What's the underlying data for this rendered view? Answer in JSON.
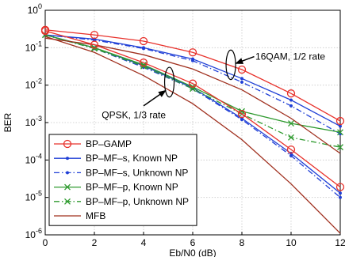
{
  "chart_data": {
    "type": "line",
    "xlabel": "Eb/N0 (dB)",
    "ylabel": "BER",
    "xlim": [
      0,
      12
    ],
    "ylim_log10": [
      -6,
      0
    ],
    "y_scale": "log",
    "grid": true,
    "legend_position": "bottom-left",
    "x_ticks": [
      0,
      2,
      4,
      6,
      8,
      10,
      12
    ],
    "y_ticks": [
      {
        "exp": 0,
        "label": "10^0"
      },
      {
        "exp": -1,
        "label": "10^-1"
      },
      {
        "exp": -2,
        "label": "10^-2"
      },
      {
        "exp": -3,
        "label": "10^-3"
      },
      {
        "exp": -4,
        "label": "10^-4"
      },
      {
        "exp": -5,
        "label": "10^-5"
      },
      {
        "exp": -6,
        "label": "10^-6"
      }
    ],
    "series": [
      {
        "name": "BP–GAMP",
        "color": "#e8302a",
        "dash": "",
        "marker": "circle",
        "group": "16QAM",
        "x": [
          0,
          2,
          4,
          6,
          8,
          10,
          12
        ],
        "y": [
          0.3,
          0.22,
          0.15,
          0.075,
          0.026,
          0.006,
          0.0011
        ]
      },
      {
        "name": "BP–GAMP",
        "color": "#e8302a",
        "dash": "",
        "marker": "circle",
        "group": "QPSK",
        "x": [
          0,
          2,
          4,
          6,
          8,
          10,
          12
        ],
        "y": [
          0.28,
          0.12,
          0.04,
          0.011,
          0.0017,
          0.00019,
          1.9e-05
        ]
      },
      {
        "name": "BP–MF–s, Known NP",
        "color": "#1f3fd6",
        "dash": "",
        "marker": "dot",
        "group": "16QAM",
        "x": [
          0,
          2,
          4,
          6,
          8,
          10,
          12
        ],
        "y": [
          0.22,
          0.17,
          0.1,
          0.05,
          0.015,
          0.004,
          0.0008
        ]
      },
      {
        "name": "BP–MF–s, Known NP",
        "color": "#1f3fd6",
        "dash": "",
        "marker": "dot",
        "group": "QPSK",
        "x": [
          0,
          2,
          4,
          6,
          8,
          10,
          12
        ],
        "y": [
          0.22,
          0.1,
          0.033,
          0.0085,
          0.0013,
          0.00015,
          1.3e-05
        ]
      },
      {
        "name": "BP–MF–s, Unknown NP",
        "color": "#1f3fd6",
        "dash": "7,3,1.5,3",
        "marker": "dot",
        "group": "16QAM",
        "x": [
          0,
          2,
          4,
          6,
          8,
          10,
          12
        ],
        "y": [
          0.22,
          0.16,
          0.095,
          0.045,
          0.012,
          0.0028,
          0.0005
        ]
      },
      {
        "name": "BP–MF–s, Unknown NP",
        "color": "#1f3fd6",
        "dash": "7,3,1.5,3",
        "marker": "dot",
        "group": "QPSK",
        "x": [
          0,
          2,
          4,
          6,
          8,
          10,
          12
        ],
        "y": [
          0.22,
          0.095,
          0.03,
          0.008,
          0.0012,
          0.00013,
          1e-05
        ]
      },
      {
        "name": "BP–MF–p, Known NP",
        "color": "#2e9a2e",
        "dash": "",
        "marker": "x",
        "group": "QPSK",
        "x": [
          0,
          2,
          4,
          6,
          8,
          10,
          12
        ],
        "y": [
          0.22,
          0.1,
          0.035,
          0.009,
          0.002,
          0.00095,
          0.00055
        ]
      },
      {
        "name": "BP–MF–p, Unknown NP",
        "color": "#2e9a2e",
        "dash": "7,3,1.5,3",
        "marker": "x",
        "group": "QPSK",
        "x": [
          0,
          2,
          4,
          6,
          8,
          10,
          12
        ],
        "y": [
          0.22,
          0.095,
          0.032,
          0.008,
          0.0017,
          0.0004,
          0.00022
        ]
      },
      {
        "name": "MFB",
        "color": "#a0301f",
        "dash": "",
        "marker": "none",
        "group": "16QAM",
        "x": [
          0,
          2,
          4,
          6,
          8,
          10,
          12
        ],
        "y": [
          0.18,
          0.12,
          0.065,
          0.027,
          0.0075,
          0.0013,
          0.00015
        ]
      },
      {
        "name": "MFB",
        "color": "#a0301f",
        "dash": "",
        "marker": "none",
        "group": "QPSK",
        "x": [
          0,
          2,
          4,
          6,
          8,
          10,
          12
        ],
        "y": [
          0.2,
          0.075,
          0.018,
          0.0032,
          0.00035,
          2.3e-05,
          1.1e-06
        ]
      }
    ],
    "legend": [
      {
        "label": "BP–GAMP",
        "color": "#e8302a",
        "dash": "",
        "marker": "circle"
      },
      {
        "label": "BP–MF–s, Known NP",
        "color": "#1f3fd6",
        "dash": "",
        "marker": "dot"
      },
      {
        "label": "BP–MF–s, Unknown NP",
        "color": "#1f3fd6",
        "dash": "7,3,1.5,3",
        "marker": "dot"
      },
      {
        "label": "BP–MF–p, Known NP",
        "color": "#2e9a2e",
        "dash": "",
        "marker": "x"
      },
      {
        "label": "BP–MF–p, Unknown NP",
        "color": "#2e9a2e",
        "dash": "7,3,1.5,3",
        "marker": "x"
      },
      {
        "label": "MFB",
        "color": "#a0301f",
        "dash": "",
        "marker": "none"
      }
    ],
    "annotations": [
      {
        "text": "16QAM, 1/2 rate",
        "x": 8.55,
        "y": 0.058,
        "anchor": "start",
        "ellipse_center": [
          7.55,
          0.035
        ],
        "ellipse_y_span": [
          0.013,
          0.08
        ],
        "arrow_from": [
          8.5,
          0.058
        ],
        "arrow_to": [
          7.75,
          0.038
        ]
      },
      {
        "text": "QPSK, 1/3 rate",
        "x": 2.3,
        "y": 0.0016,
        "anchor": "start",
        "ellipse_center": [
          5.05,
          0.012
        ],
        "ellipse_y_span": [
          0.0048,
          0.03
        ],
        "arrow_from": [
          4.0,
          0.0028
        ],
        "arrow_to": [
          4.9,
          0.0072
        ]
      }
    ]
  }
}
